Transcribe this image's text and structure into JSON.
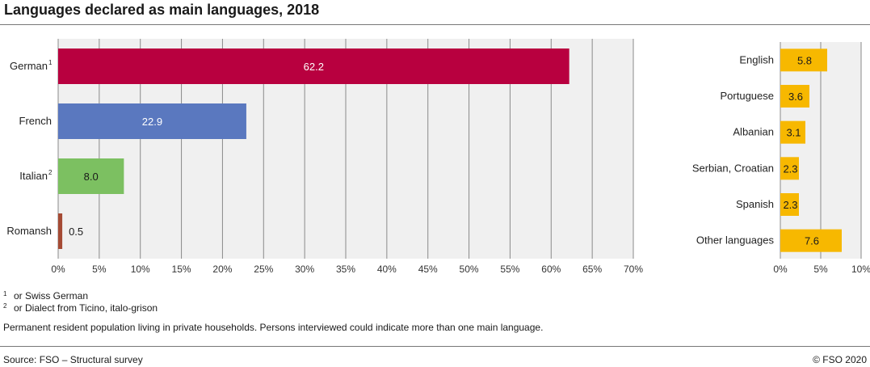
{
  "title": "Languages declared as main languages, 2018",
  "footnotes": [
    {
      "mark": "1",
      "text": "or Swiss German"
    },
    {
      "mark": "2",
      "text": "or Dialect from Ticino, italo-grison"
    }
  ],
  "note": "Permanent resident population living in private households. Persons interviewed could indicate more than one main language.",
  "source": "Source: FSO – Structural survey",
  "copyright": "© FSO 2020",
  "colors": {
    "german": "#b8003f",
    "french": "#5a78bf",
    "italian": "#7cc061",
    "romansh": "#a54a34",
    "other": "#f7b800",
    "plot_bg": "#f0f0f0",
    "grid": "#8a8a8a"
  },
  "chart_data": [
    {
      "type": "bar",
      "orientation": "horizontal",
      "categories": [
        "German",
        "French",
        "Italian",
        "Romansh"
      ],
      "category_marks": [
        "1",
        "",
        "2",
        ""
      ],
      "values": [
        62.2,
        22.9,
        8.0,
        0.5
      ],
      "value_labels": [
        "62.2",
        "22.9",
        "8.0",
        "0.5"
      ],
      "xlim": [
        0,
        70
      ],
      "xticks": [
        "0%",
        "5%",
        "10%",
        "15%",
        "20%",
        "25%",
        "30%",
        "35%",
        "40%",
        "45%",
        "50%",
        "55%",
        "60%",
        "65%",
        "70%"
      ],
      "grid": true
    },
    {
      "type": "bar",
      "orientation": "horizontal",
      "categories": [
        "English",
        "Portuguese",
        "Albanian",
        "Serbian, Croatian",
        "Spanish",
        "Other languages"
      ],
      "values": [
        5.8,
        3.6,
        3.1,
        2.3,
        2.3,
        7.6
      ],
      "value_labels": [
        "5.8",
        "3.6",
        "3.1",
        "2.3",
        "2.3",
        "7.6"
      ],
      "xlim": [
        0,
        10
      ],
      "xticks": [
        "0%",
        "5%",
        "10%"
      ],
      "grid": true
    }
  ]
}
